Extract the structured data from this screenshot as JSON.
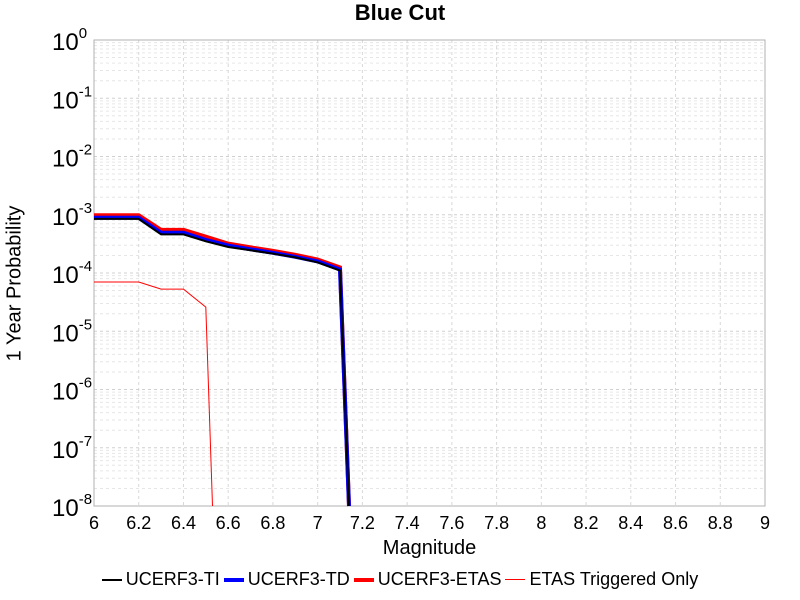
{
  "chart_data": {
    "type": "line",
    "title": "Blue Cut",
    "xlabel": "Magnitude",
    "ylabel": "1 Year Probability",
    "xlim": [
      6,
      9
    ],
    "ylim": [
      1e-08,
      1
    ],
    "y_scale": "log",
    "grid": true,
    "legend_position": "bottom",
    "x_ticks": [
      "6",
      "6.2",
      "6.4",
      "6.6",
      "6.8",
      "7",
      "7.2",
      "7.4",
      "7.6",
      "7.8",
      "8",
      "8.2",
      "8.4",
      "8.6",
      "8.8",
      "9"
    ],
    "y_tick_exponents": [
      0,
      -1,
      -2,
      -3,
      -4,
      -5,
      -6,
      -7,
      -8
    ],
    "y_tick_base": "10",
    "series": [
      {
        "name": "UCERF3-ETAS",
        "color": "#ff0000",
        "width": 4,
        "x": [
          6.0,
          6.1,
          6.2,
          6.3,
          6.4,
          6.5,
          6.6,
          6.7,
          6.8,
          6.9,
          7.0,
          7.1,
          7.14
        ],
        "y": [
          0.00098,
          0.00098,
          0.00098,
          0.00055,
          0.00055,
          0.00042,
          0.00032,
          0.000275,
          0.00024,
          0.000205,
          0.00017,
          0.000125,
          1e-08
        ]
      },
      {
        "name": "UCERF3-TD",
        "color": "#0000ff",
        "width": 4,
        "x": [
          6.0,
          6.1,
          6.2,
          6.3,
          6.4,
          6.5,
          6.6,
          6.7,
          6.8,
          6.9,
          7.0,
          7.1,
          7.14
        ],
        "y": [
          0.00089,
          0.00089,
          0.00089,
          0.00049,
          0.00049,
          0.00037,
          0.000295,
          0.000255,
          0.000222,
          0.00019,
          0.000158,
          0.000115,
          1e-08
        ]
      },
      {
        "name": "UCERF3-TI",
        "color": "#000000",
        "width": 2,
        "x": [
          6.0,
          6.1,
          6.2,
          6.3,
          6.4,
          6.5,
          6.6,
          6.7,
          6.8,
          6.9,
          7.0,
          7.1,
          7.14
        ],
        "y": [
          0.00085,
          0.00085,
          0.00085,
          0.00046,
          0.00046,
          0.00035,
          0.00028,
          0.000245,
          0.000215,
          0.000185,
          0.000152,
          0.00011,
          1e-08
        ]
      },
      {
        "name": "ETAS Triggered Only",
        "color": "#ff0000",
        "width": 1,
        "x": [
          6.0,
          6.1,
          6.2,
          6.3,
          6.4,
          6.5,
          6.53
        ],
        "y": [
          7e-05,
          7e-05,
          7e-05,
          5.3e-05,
          5.3e-05,
          2.6e-05,
          1e-08
        ]
      }
    ],
    "legend_order": [
      "UCERF3-TI",
      "UCERF3-TD",
      "UCERF3-ETAS",
      "ETAS Triggered Only"
    ]
  }
}
